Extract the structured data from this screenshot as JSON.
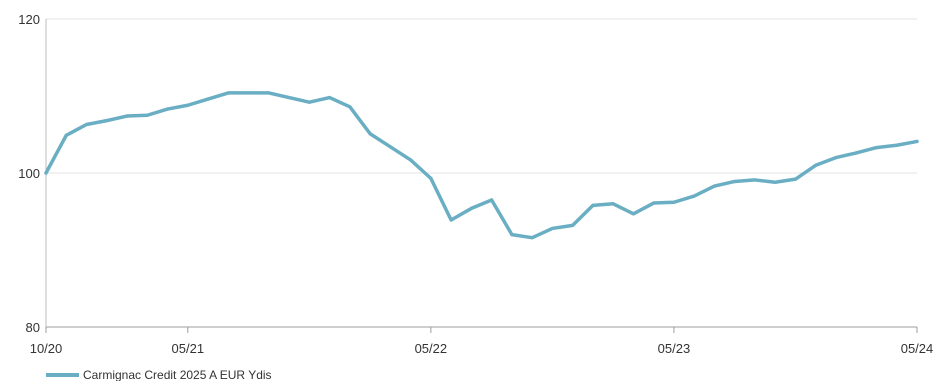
{
  "chart_data": {
    "type": "line",
    "x": [
      "10/20",
      "11/20",
      "12/20",
      "01/21",
      "02/21",
      "03/21",
      "04/21",
      "05/21",
      "06/21",
      "07/21",
      "08/21",
      "09/21",
      "10/21",
      "11/21",
      "12/21",
      "01/22",
      "02/22",
      "03/22",
      "04/22",
      "05/22",
      "06/22",
      "07/22",
      "08/22",
      "09/22",
      "10/22",
      "11/22",
      "12/22",
      "01/23",
      "02/23",
      "03/23",
      "04/23",
      "05/23",
      "06/23",
      "07/23",
      "08/23",
      "09/23",
      "10/23",
      "11/23",
      "12/23",
      "01/24",
      "02/24",
      "03/24",
      "04/24",
      "05/24"
    ],
    "x_ticks": [
      "10/20",
      "05/21",
      "05/22",
      "05/23",
      "05/24"
    ],
    "series": [
      {
        "name": "Carmignac Credit 2025 A EUR Ydis",
        "color": "#6aaec4",
        "values": [
          100.0,
          104.9,
          106.3,
          106.8,
          107.4,
          107.5,
          108.3,
          108.8,
          109.6,
          110.4,
          110.4,
          110.4,
          109.8,
          109.2,
          109.8,
          108.6,
          105.1,
          103.4,
          101.7,
          99.3,
          93.9,
          95.4,
          96.5,
          92.0,
          91.6,
          92.8,
          93.2,
          95.8,
          96.0,
          94.7,
          96.1,
          96.2,
          97.0,
          98.3,
          98.9,
          99.1,
          98.8,
          99.2,
          101.0,
          102.0,
          102.6,
          103.3,
          103.6,
          104.1
        ]
      }
    ],
    "yticks": [
      80,
      100,
      120
    ],
    "ylim": [
      80,
      120
    ],
    "grid": "horizontal",
    "legend_position": "bottom-left"
  }
}
